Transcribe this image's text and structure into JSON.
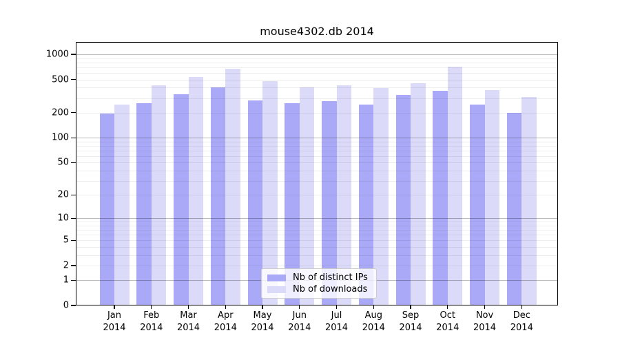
{
  "chart_data": {
    "type": "bar",
    "title": "mouse4302.db 2014",
    "year": "2014",
    "months": [
      "Jan",
      "Feb",
      "Mar",
      "Apr",
      "May",
      "Jun",
      "Jul",
      "Aug",
      "Sep",
      "Oct",
      "Nov",
      "Dec"
    ],
    "categories": [
      "Jan 2014",
      "Feb 2014",
      "Mar 2014",
      "Apr 2014",
      "May 2014",
      "Jun 2014",
      "Jul 2014",
      "Aug 2014",
      "Sep 2014",
      "Oct 2014",
      "Nov 2014",
      "Dec 2014"
    ],
    "series": [
      {
        "name": "Nb of distinct IPs",
        "color": "#a9a9f8",
        "values": [
          195,
          261,
          331,
          401,
          282,
          258,
          278,
          252,
          330,
          363,
          252,
          200
        ]
      },
      {
        "name": "Nb of downloads",
        "color": "#dbdbf9",
        "values": [
          252,
          424,
          539,
          676,
          476,
          401,
          424,
          393,
          452,
          708,
          376,
          310
        ]
      }
    ],
    "yscale": "log1p",
    "ylim": [
      0,
      1380
    ],
    "yticks": [
      0,
      1,
      2,
      5,
      10,
      20,
      50,
      100,
      200,
      500,
      1000
    ],
    "grid": "on",
    "legend_position": "lower center"
  },
  "colors": {
    "background": "#ffffff",
    "axis": "#000000",
    "major_grid": "rgba(0,0,0,0.28)",
    "minor_grid": "rgba(0,0,0,0.07)",
    "legend_border": "#cccccc",
    "legend_background": "rgba(255,255,255,0.8)"
  }
}
